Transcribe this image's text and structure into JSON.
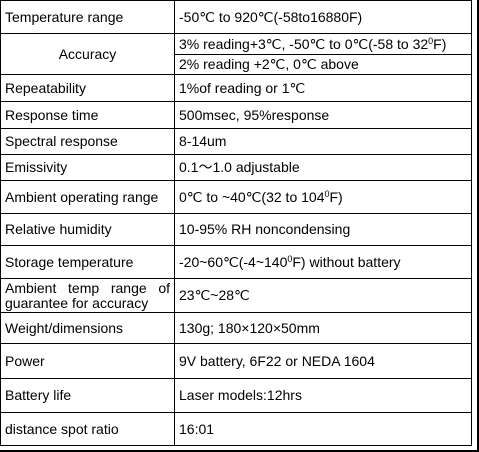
{
  "rows": [
    {
      "label": "Temperature range",
      "value": "-50℃ to 920℃(-58to16880F)"
    },
    {
      "label": "Accuracy",
      "value_a_pre": "3% reading+3℃, -50℃ to 0℃(-58 to 32",
      "value_a_sup": "0",
      "value_a_post": "F)",
      "value_b": "2% reading +2℃, 0℃ above"
    },
    {
      "label": "Repeatability",
      "value": "1%of reading or 1℃"
    },
    {
      "label": "Response time",
      "value": "500msec, 95%response"
    },
    {
      "label": "Spectral response",
      "value": "8-14um"
    },
    {
      "label": "Emissivity",
      "value": "0.1～1.0 adjustable"
    },
    {
      "label": "Ambient operating range",
      "value_pre": "0℃ to ~40℃(32 to 104",
      "value_sup": "0",
      "value_post": "F)"
    },
    {
      "label": "Relative humidity",
      "value": "10-95% RH noncondensing"
    },
    {
      "label": "Storage temperature",
      "value_pre": "-20~60℃(-4~140",
      "value_sup": "0",
      "value_post": "F) without battery"
    },
    {
      "label": "Ambient temp range of guarantee for accuracy",
      "value": "23℃~28℃"
    },
    {
      "label": "Weight/dimensions",
      "value": "130g;  180×120×50mm"
    },
    {
      "label": "Power",
      "value": "9V battery, 6F22 or NEDA 1604"
    },
    {
      "label": "Battery life",
      "value": "Laser models:12hrs"
    },
    {
      "label": "distance spot ratio",
      "value": "16:01"
    }
  ]
}
